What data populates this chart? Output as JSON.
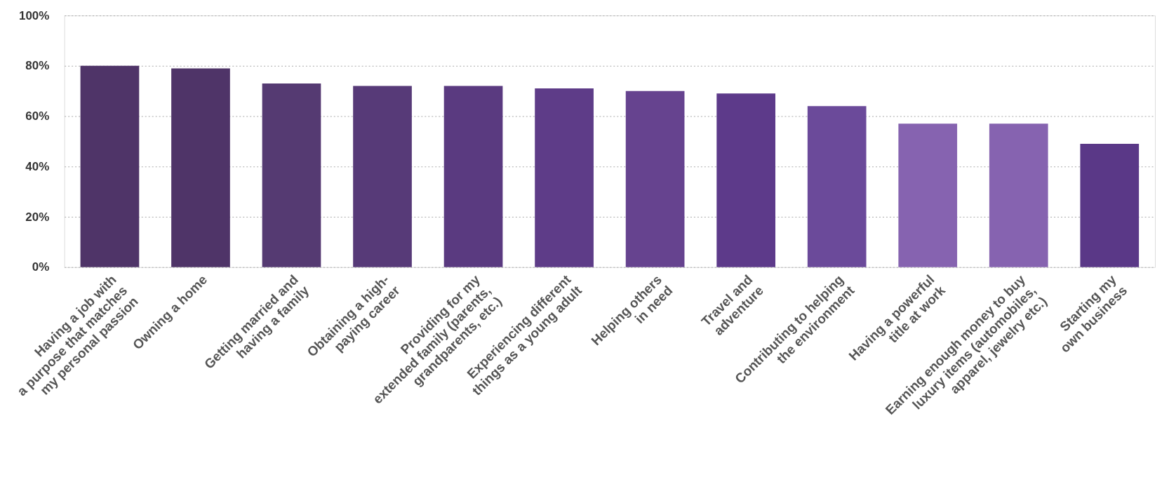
{
  "chart_data": {
    "type": "bar",
    "categories": [
      "Having a job with\na purpose that matches\nmy personal passion",
      "Owning a home",
      "Getting married and\nhaving a family",
      "Obtaining a high-\npaying career",
      "Providing for my\nextended family (parents,\ngrandparents, etc.)",
      "Experiencing different\nthings as a young adult",
      "Helping others\nin need",
      "Travel and\nadventure",
      "Contributing to helping\nthe environment",
      "Having a powerful\ntitle at work",
      "Earning enough money to buy\nluxury items (automobiles,\napparel, jewelry etc.)",
      "Starting my\nown business"
    ],
    "values": [
      80,
      79,
      73,
      72,
      72,
      71,
      70,
      69,
      64,
      57,
      57,
      49
    ],
    "colors": [
      "#4f3468",
      "#4f3468",
      "#553a72",
      "#573a78",
      "#5a3a80",
      "#5e3c88",
      "#66438f",
      "#5d3a8a",
      "#6b4a9a",
      "#8663b0",
      "#8663b0",
      "#5a3887"
    ],
    "ylim": [
      0,
      100
    ],
    "yticks": [
      {
        "value": 0,
        "label": "0%"
      },
      {
        "value": 20,
        "label": "20%"
      },
      {
        "value": 40,
        "label": "40%"
      },
      {
        "value": 60,
        "label": "60%"
      },
      {
        "value": 80,
        "label": "80%"
      },
      {
        "value": 100,
        "label": "100%"
      }
    ],
    "grid": "y"
  }
}
